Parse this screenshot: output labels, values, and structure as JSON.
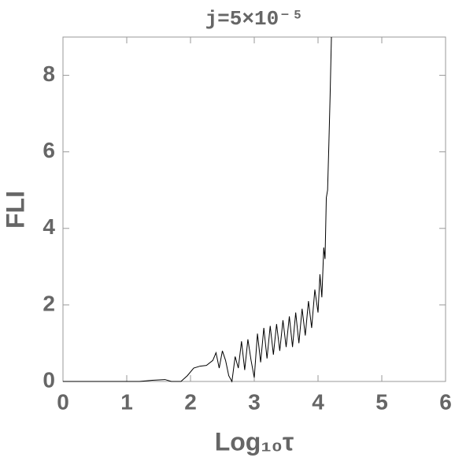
{
  "chart_data": {
    "type": "line",
    "title": "j=5×10⁻⁵",
    "xlabel": "Log₁₀τ",
    "ylabel": "FLI",
    "x": [
      0,
      1.2,
      1.4,
      1.6,
      1.7,
      1.85,
      1.95,
      2.05,
      2.15,
      2.25,
      2.35,
      2.4,
      2.45,
      2.5,
      2.55,
      2.6,
      2.65,
      2.7,
      2.75,
      2.8,
      2.85,
      2.9,
      2.95,
      3.0,
      3.05,
      3.1,
      3.15,
      3.2,
      3.25,
      3.3,
      3.35,
      3.4,
      3.45,
      3.5,
      3.55,
      3.6,
      3.65,
      3.7,
      3.75,
      3.8,
      3.85,
      3.9,
      3.95,
      4.0,
      4.03,
      4.06,
      4.09,
      4.11,
      4.13,
      4.15,
      4.17,
      4.19,
      4.21
    ],
    "series": [
      {
        "color": "#000000",
        "values": [
          0,
          0,
          0.03,
          0.05,
          0,
          0,
          0.15,
          0.35,
          0.4,
          0.42,
          0.55,
          0.75,
          0.35,
          0.8,
          0.55,
          0.15,
          0,
          0.65,
          0.35,
          1.05,
          0.3,
          1.1,
          0.55,
          0.1,
          1.25,
          0.5,
          1.4,
          0.6,
          1.45,
          0.7,
          1.5,
          0.8,
          1.6,
          0.9,
          1.7,
          0.9,
          1.8,
          1.0,
          1.9,
          1.2,
          2.1,
          1.4,
          2.4,
          1.8,
          2.8,
          2.2,
          3.5,
          3.2,
          4.8,
          5.0,
          6.2,
          7.5,
          9
        ]
      }
    ],
    "xlim": [
      0,
      6
    ],
    "ylim": [
      0,
      9
    ],
    "xticks": [
      0,
      1,
      2,
      3,
      4,
      5,
      6
    ],
    "yticks": [
      0,
      2,
      4,
      6,
      8
    ]
  }
}
